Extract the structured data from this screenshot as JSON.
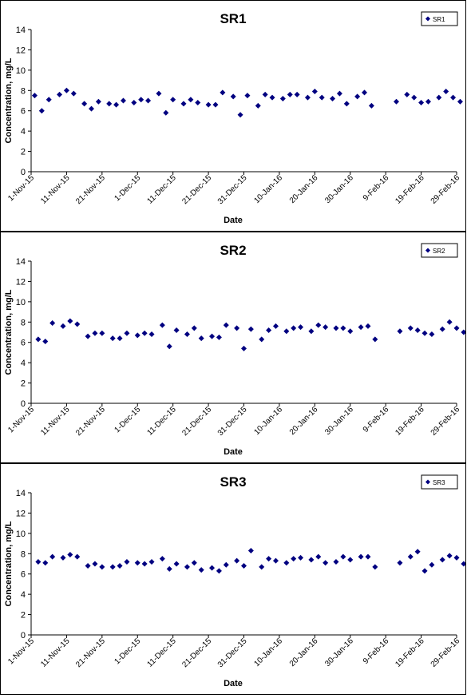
{
  "chart_data": [
    {
      "type": "scatter",
      "title": "SR1",
      "xlabel": "Date",
      "ylabel": "Concentration, mg/L",
      "xlim": [
        "2015-11-01",
        "2016-02-29"
      ],
      "ylim": [
        0,
        14
      ],
      "yticks": [
        "0",
        "2",
        "4",
        "6",
        "8",
        "10",
        "12",
        "14"
      ],
      "xticks": [
        "1-Nov-15",
        "11-Nov-15",
        "21-Nov-15",
        "1-Dec-15",
        "11-Dec-15",
        "21-Dec-15",
        "31-Dec-15",
        "10-Jan-16",
        "20-Jan-16",
        "30-Jan-16",
        "9-Feb-16",
        "19-Feb-16",
        "29-Feb-16"
      ],
      "grid": false,
      "legend": {
        "position": "top-right",
        "entries": [
          "SR1"
        ]
      },
      "marker": "diamond",
      "color": "#000080",
      "series": [
        {
          "name": "SR1",
          "x": [
            "2015-11-02",
            "2015-11-04",
            "2015-11-06",
            "2015-11-09",
            "2015-11-11",
            "2015-11-13",
            "2015-11-16",
            "2015-11-18",
            "2015-11-20",
            "2015-11-23",
            "2015-11-25",
            "2015-11-27",
            "2015-11-30",
            "2015-12-02",
            "2015-12-04",
            "2015-12-07",
            "2015-12-09",
            "2015-12-11",
            "2015-12-14",
            "2015-12-16",
            "2015-12-18",
            "2015-12-21",
            "2015-12-23",
            "2015-12-25",
            "2015-12-28",
            "2015-12-30",
            "2016-01-01",
            "2016-01-04",
            "2016-01-06",
            "2016-01-08",
            "2016-01-11",
            "2016-01-13",
            "2016-01-15",
            "2016-01-18",
            "2016-01-20",
            "2016-01-22",
            "2016-01-25",
            "2016-01-27",
            "2016-01-29",
            "2016-02-01",
            "2016-02-03",
            "2016-02-05",
            "2016-02-12",
            "2016-02-15",
            "2016-02-17",
            "2016-02-19",
            "2016-02-21",
            "2016-02-24",
            "2016-02-26",
            "2016-02-28",
            "2016-03-01"
          ],
          "y": [
            7.5,
            6.0,
            7.1,
            7.6,
            8.0,
            7.7,
            6.7,
            6.2,
            6.9,
            6.7,
            6.6,
            7.0,
            6.8,
            7.1,
            7.0,
            7.7,
            5.8,
            7.1,
            6.7,
            7.1,
            6.8,
            6.6,
            6.6,
            7.8,
            7.4,
            5.6,
            7.5,
            6.5,
            7.6,
            7.3,
            7.2,
            7.6,
            7.6,
            7.3,
            7.9,
            7.3,
            7.2,
            7.7,
            6.7,
            7.4,
            7.8,
            6.5,
            6.9,
            7.6,
            7.3,
            6.8,
            6.9,
            7.3,
            7.9,
            7.3,
            6.9
          ]
        }
      ]
    },
    {
      "type": "scatter",
      "title": "SR2",
      "xlabel": "Date",
      "ylabel": "Concentration, mg/L",
      "xlim": [
        "2015-11-01",
        "2016-02-29"
      ],
      "ylim": [
        0,
        14
      ],
      "yticks": [
        "0",
        "2",
        "4",
        "6",
        "8",
        "10",
        "12",
        "14"
      ],
      "xticks": [
        "1-Nov-15",
        "11-Nov-15",
        "21-Nov-15",
        "1-Dec-15",
        "11-Dec-15",
        "21-Dec-15",
        "31-Dec-15",
        "10-Jan-16",
        "20-Jan-16",
        "30-Jan-16",
        "9-Feb-16",
        "19-Feb-16",
        "29-Feb-16"
      ],
      "grid": false,
      "legend": {
        "position": "top-right",
        "entries": [
          "SR2"
        ]
      },
      "marker": "diamond",
      "color": "#000080",
      "series": [
        {
          "name": "SR2",
          "x": [
            "2015-11-03",
            "2015-11-05",
            "2015-11-07",
            "2015-11-10",
            "2015-11-12",
            "2015-11-14",
            "2015-11-17",
            "2015-11-19",
            "2015-11-21",
            "2015-11-24",
            "2015-11-26",
            "2015-11-28",
            "2015-12-01",
            "2015-12-03",
            "2015-12-05",
            "2015-12-08",
            "2015-12-10",
            "2015-12-12",
            "2015-12-15",
            "2015-12-17",
            "2015-12-19",
            "2015-12-22",
            "2015-12-24",
            "2015-12-26",
            "2015-12-29",
            "2015-12-31",
            "2016-01-02",
            "2016-01-05",
            "2016-01-07",
            "2016-01-09",
            "2016-01-12",
            "2016-01-14",
            "2016-01-16",
            "2016-01-19",
            "2016-01-21",
            "2016-01-23",
            "2016-01-26",
            "2016-01-28",
            "2016-01-30",
            "2016-02-02",
            "2016-02-04",
            "2016-02-06",
            "2016-02-13",
            "2016-02-16",
            "2016-02-18",
            "2016-02-20",
            "2016-02-22",
            "2016-02-25",
            "2016-02-27",
            "2016-02-29",
            "2016-03-02"
          ],
          "y": [
            6.3,
            6.1,
            7.9,
            7.6,
            8.1,
            7.8,
            6.6,
            6.9,
            6.9,
            6.4,
            6.4,
            6.9,
            6.7,
            6.9,
            6.8,
            7.7,
            5.6,
            7.2,
            6.8,
            7.4,
            6.4,
            6.6,
            6.5,
            7.7,
            7.4,
            5.4,
            7.3,
            6.3,
            7.2,
            7.6,
            7.1,
            7.4,
            7.5,
            7.1,
            7.7,
            7.5,
            7.4,
            7.4,
            7.1,
            7.5,
            7.6,
            6.3,
            7.1,
            7.4,
            7.2,
            6.9,
            6.8,
            7.3,
            8.0,
            7.4,
            7.0
          ]
        }
      ]
    },
    {
      "type": "scatter",
      "title": "SR3",
      "xlabel": "Date",
      "ylabel": "Concentration, mg/L",
      "xlim": [
        "2015-11-01",
        "2016-02-29"
      ],
      "ylim": [
        0,
        14
      ],
      "yticks": [
        "0",
        "2",
        "4",
        "6",
        "8",
        "10",
        "12",
        "14"
      ],
      "xticks": [
        "1-Nov-15",
        "11-Nov-15",
        "21-Nov-15",
        "1-Dec-15",
        "11-Dec-15",
        "21-Dec-15",
        "31-Dec-15",
        "10-Jan-16",
        "20-Jan-16",
        "30-Jan-16",
        "9-Feb-16",
        "19-Feb-16",
        "29-Feb-16"
      ],
      "grid": false,
      "legend": {
        "position": "top-right",
        "entries": [
          "SR3"
        ]
      },
      "marker": "diamond",
      "color": "#000080",
      "series": [
        {
          "name": "SR3",
          "x": [
            "2015-11-03",
            "2015-11-05",
            "2015-11-07",
            "2015-11-10",
            "2015-11-12",
            "2015-11-14",
            "2015-11-17",
            "2015-11-19",
            "2015-11-21",
            "2015-11-24",
            "2015-11-26",
            "2015-11-28",
            "2015-12-01",
            "2015-12-03",
            "2015-12-05",
            "2015-12-08",
            "2015-12-10",
            "2015-12-12",
            "2015-12-15",
            "2015-12-17",
            "2015-12-19",
            "2015-12-22",
            "2015-12-24",
            "2015-12-26",
            "2015-12-29",
            "2015-12-31",
            "2016-01-02",
            "2016-01-05",
            "2016-01-07",
            "2016-01-09",
            "2016-01-12",
            "2016-01-14",
            "2016-01-16",
            "2016-01-19",
            "2016-01-21",
            "2016-01-23",
            "2016-01-26",
            "2016-01-28",
            "2016-01-30",
            "2016-02-02",
            "2016-02-04",
            "2016-02-06",
            "2016-02-13",
            "2016-02-16",
            "2016-02-18",
            "2016-02-20",
            "2016-02-22",
            "2016-02-25",
            "2016-02-27",
            "2016-02-29",
            "2016-03-02"
          ],
          "y": [
            7.2,
            7.1,
            7.7,
            7.6,
            7.9,
            7.7,
            6.8,
            7.0,
            6.7,
            6.7,
            6.8,
            7.2,
            7.1,
            7.0,
            7.2,
            7.5,
            6.5,
            7.0,
            6.7,
            7.1,
            6.4,
            6.6,
            6.3,
            6.9,
            7.3,
            6.8,
            8.3,
            6.7,
            7.5,
            7.3,
            7.1,
            7.5,
            7.6,
            7.4,
            7.7,
            7.1,
            7.2,
            7.7,
            7.4,
            7.7,
            7.7,
            6.7,
            7.1,
            7.7,
            8.2,
            6.3,
            6.9,
            7.4,
            7.8,
            7.6,
            7.0
          ]
        }
      ]
    }
  ]
}
